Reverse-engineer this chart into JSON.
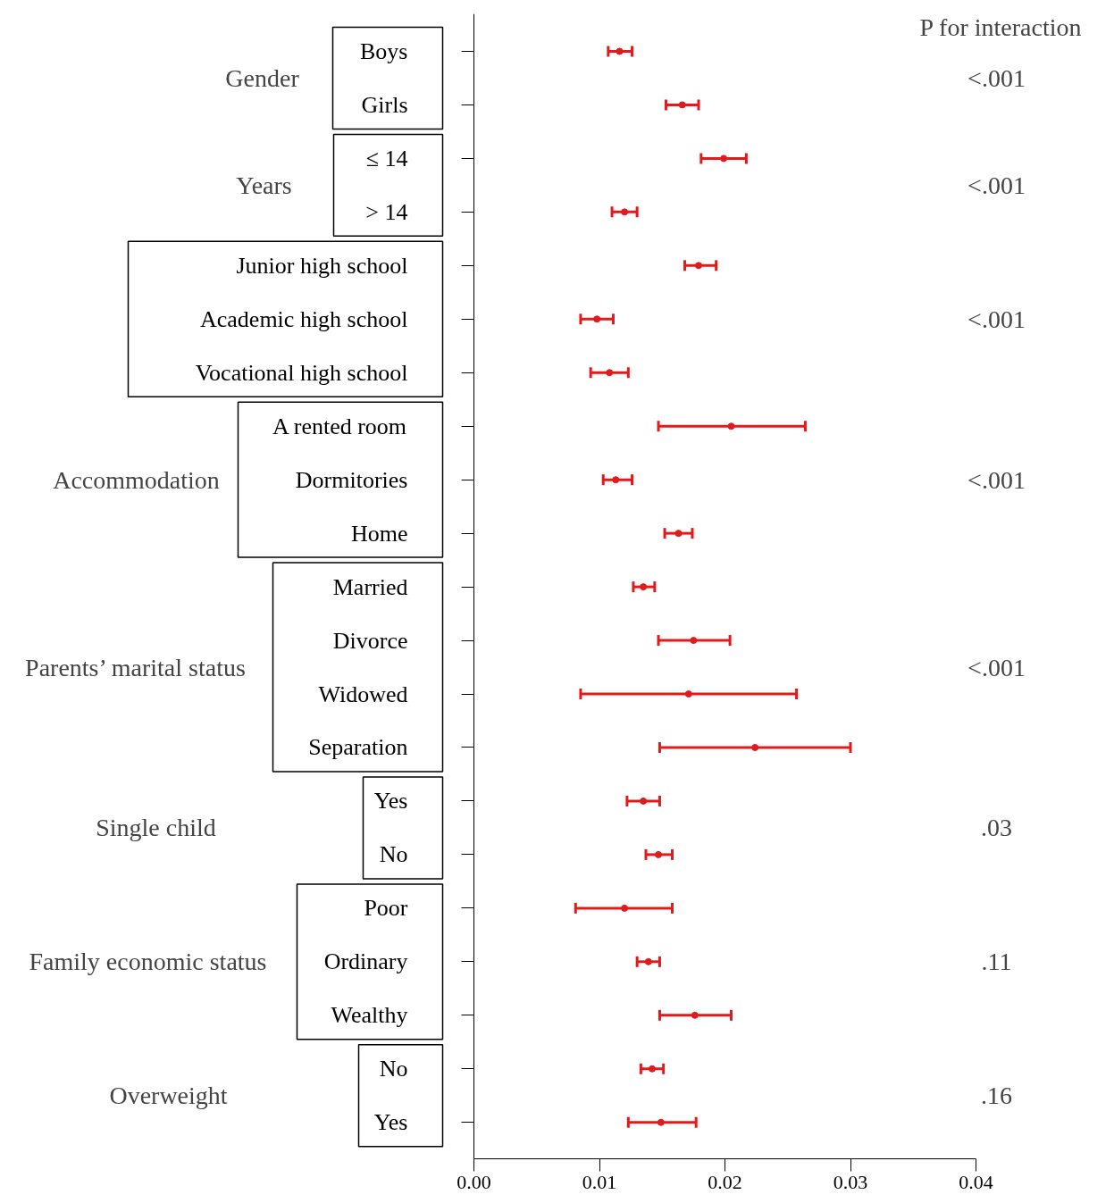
{
  "chart_data": {
    "type": "scatter",
    "orientation": "horizontal",
    "categories": [
      "Boys",
      "Girls",
      "≤ 14",
      "> 14",
      "Junior high school",
      "Academic high school",
      "Vocational high school",
      "A rented room",
      "Dormitories",
      "Home",
      "Married",
      "Divorce",
      "Widowed",
      "Separation",
      "Yes",
      "No",
      "Poor",
      "Ordinary",
      "Wealthy",
      "No",
      "Yes"
    ],
    "series": [
      {
        "color": "#e31a1c",
        "values": [
          0.0116,
          0.0166,
          0.0199,
          0.012,
          0.0179,
          0.0098,
          0.0108,
          0.0205,
          0.0113,
          0.0163,
          0.0135,
          0.0175,
          0.0171,
          0.0224,
          0.0135,
          0.0147,
          0.012,
          0.0139,
          0.0176,
          0.0142,
          0.0149
        ],
        "errors": [
          [
            0.0107,
            0.0126
          ],
          [
            0.0153,
            0.0179
          ],
          [
            0.0181,
            0.0217
          ],
          [
            0.011,
            0.013
          ],
          [
            0.0168,
            0.0193
          ],
          [
            0.0085,
            0.0111
          ],
          [
            0.0093,
            0.0123
          ],
          [
            0.0147,
            0.0264
          ],
          [
            0.0103,
            0.0126
          ],
          [
            0.0152,
            0.0174
          ],
          [
            0.0127,
            0.0144
          ],
          [
            0.0147,
            0.0204
          ],
          [
            0.0085,
            0.0257
          ],
          [
            0.0148,
            0.03
          ],
          [
            0.0122,
            0.0148
          ],
          [
            0.0137,
            0.0158
          ],
          [
            0.0081,
            0.0158
          ],
          [
            0.013,
            0.0148
          ],
          [
            0.0148,
            0.0205
          ],
          [
            0.0133,
            0.0151
          ],
          [
            0.0123,
            0.0177
          ]
        ]
      }
    ],
    "xlim": [
      0,
      0.04
    ],
    "xticks": [
      {
        "value": 0,
        "label": "0.00"
      },
      {
        "value": 0.01,
        "label": "0.01"
      },
      {
        "value": 0.02,
        "label": "0.02"
      },
      {
        "value": 0.03,
        "label": "0.03"
      },
      {
        "value": 0.04,
        "label": "0.04"
      }
    ],
    "marker": "circle",
    "grid": false,
    "annotations": [
      "P for interaction",
      "Gender",
      "Years",
      "Accommodation",
      "Parents’ marital status",
      "Single child",
      "Family economic status",
      "Overweight",
      "<.001",
      "<.001",
      "<.001",
      "<.001",
      "<.001",
      ".03",
      ".11",
      ".16"
    ]
  }
}
